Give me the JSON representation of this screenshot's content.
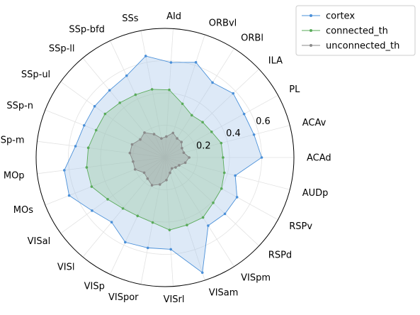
{
  "chart_data": {
    "type": "radar",
    "title": "",
    "angle_start": "east",
    "direction": "counterclockwise",
    "categories": [
      "ACAd",
      "ACAv",
      "PL",
      "ILA",
      "ORBl",
      "ORBvl",
      "AId",
      "SSs",
      "SSp-bfd",
      "SSp-ll",
      "SSp-ul",
      "SSp-n",
      "SSp-m",
      "MOp",
      "MOs",
      "VISal",
      "VISl",
      "VISp",
      "VISpor",
      "VISrl",
      "VISam",
      "VISpm",
      "RSPd",
      "RSPv",
      "AUDp"
    ],
    "radial_ticks": [
      0.2,
      0.4,
      0.6
    ],
    "radial_tick_labels": [
      "0.2",
      "0.4",
      "0.6"
    ],
    "rlim": [
      0,
      0.8
    ],
    "grid": true,
    "legend_position": "top-right (outside)",
    "series": [
      {
        "name": "cortex",
        "color": "#4a90d9",
        "fill_color": "#a9c8ea",
        "values": [
          0.6,
          0.57,
          0.56,
          0.58,
          0.55,
          0.62,
          0.59,
          0.64,
          0.56,
          0.54,
          0.54,
          0.54,
          0.56,
          0.63,
          0.64,
          0.56,
          0.52,
          0.58,
          0.57,
          0.57,
          0.75,
          0.5,
          0.51,
          0.51,
          0.45
        ]
      },
      {
        "name": "connected_th",
        "color": "#5aab5a",
        "fill_color": "#9cc9a3",
        "values": [
          0.36,
          0.36,
          0.33,
          0.32,
          0.31,
          0.35,
          0.42,
          0.43,
          0.43,
          0.44,
          0.46,
          0.46,
          0.48,
          0.49,
          0.49,
          0.44,
          0.41,
          0.4,
          0.41,
          0.45,
          0.44,
          0.44,
          0.41,
          0.4,
          0.38
        ]
      },
      {
        "name": "unconnected_th",
        "color": "#8a8a8a",
        "fill_color": "#9a9a9a",
        "values": [
          0.15,
          0.12,
          0.12,
          0.14,
          0.14,
          0.16,
          0.13,
          0.12,
          0.16,
          0.2,
          0.19,
          0.22,
          0.22,
          0.2,
          0.2,
          0.16,
          0.17,
          0.19,
          0.17,
          0.14,
          0.1,
          0.08,
          0.09,
          0.1,
          0.13
        ]
      }
    ]
  }
}
